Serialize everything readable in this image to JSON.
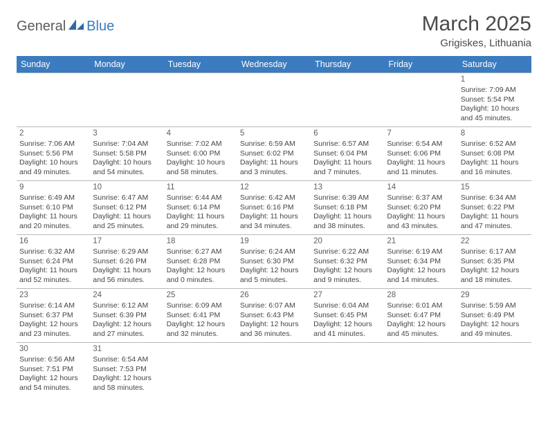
{
  "logo": {
    "part1": "General",
    "part2": "Blue"
  },
  "title": "March 2025",
  "location": "Grigiskes, Lithuania",
  "colors": {
    "header_bg": "#3b7bbf",
    "header_fg": "#ffffff",
    "border": "#b8b8b8",
    "text": "#454545",
    "logo_gray": "#5a5a5a",
    "logo_blue": "#3b7bbf"
  },
  "dayHeaders": [
    "Sunday",
    "Monday",
    "Tuesday",
    "Wednesday",
    "Thursday",
    "Friday",
    "Saturday"
  ],
  "weeks": [
    [
      null,
      null,
      null,
      null,
      null,
      null,
      {
        "n": "1",
        "sunrise": "Sunrise: 7:09 AM",
        "sunset": "Sunset: 5:54 PM",
        "daylight": "Daylight: 10 hours and 45 minutes."
      }
    ],
    [
      {
        "n": "2",
        "sunrise": "Sunrise: 7:06 AM",
        "sunset": "Sunset: 5:56 PM",
        "daylight": "Daylight: 10 hours and 49 minutes."
      },
      {
        "n": "3",
        "sunrise": "Sunrise: 7:04 AM",
        "sunset": "Sunset: 5:58 PM",
        "daylight": "Daylight: 10 hours and 54 minutes."
      },
      {
        "n": "4",
        "sunrise": "Sunrise: 7:02 AM",
        "sunset": "Sunset: 6:00 PM",
        "daylight": "Daylight: 10 hours and 58 minutes."
      },
      {
        "n": "5",
        "sunrise": "Sunrise: 6:59 AM",
        "sunset": "Sunset: 6:02 PM",
        "daylight": "Daylight: 11 hours and 3 minutes."
      },
      {
        "n": "6",
        "sunrise": "Sunrise: 6:57 AM",
        "sunset": "Sunset: 6:04 PM",
        "daylight": "Daylight: 11 hours and 7 minutes."
      },
      {
        "n": "7",
        "sunrise": "Sunrise: 6:54 AM",
        "sunset": "Sunset: 6:06 PM",
        "daylight": "Daylight: 11 hours and 11 minutes."
      },
      {
        "n": "8",
        "sunrise": "Sunrise: 6:52 AM",
        "sunset": "Sunset: 6:08 PM",
        "daylight": "Daylight: 11 hours and 16 minutes."
      }
    ],
    [
      {
        "n": "9",
        "sunrise": "Sunrise: 6:49 AM",
        "sunset": "Sunset: 6:10 PM",
        "daylight": "Daylight: 11 hours and 20 minutes."
      },
      {
        "n": "10",
        "sunrise": "Sunrise: 6:47 AM",
        "sunset": "Sunset: 6:12 PM",
        "daylight": "Daylight: 11 hours and 25 minutes."
      },
      {
        "n": "11",
        "sunrise": "Sunrise: 6:44 AM",
        "sunset": "Sunset: 6:14 PM",
        "daylight": "Daylight: 11 hours and 29 minutes."
      },
      {
        "n": "12",
        "sunrise": "Sunrise: 6:42 AM",
        "sunset": "Sunset: 6:16 PM",
        "daylight": "Daylight: 11 hours and 34 minutes."
      },
      {
        "n": "13",
        "sunrise": "Sunrise: 6:39 AM",
        "sunset": "Sunset: 6:18 PM",
        "daylight": "Daylight: 11 hours and 38 minutes."
      },
      {
        "n": "14",
        "sunrise": "Sunrise: 6:37 AM",
        "sunset": "Sunset: 6:20 PM",
        "daylight": "Daylight: 11 hours and 43 minutes."
      },
      {
        "n": "15",
        "sunrise": "Sunrise: 6:34 AM",
        "sunset": "Sunset: 6:22 PM",
        "daylight": "Daylight: 11 hours and 47 minutes."
      }
    ],
    [
      {
        "n": "16",
        "sunrise": "Sunrise: 6:32 AM",
        "sunset": "Sunset: 6:24 PM",
        "daylight": "Daylight: 11 hours and 52 minutes."
      },
      {
        "n": "17",
        "sunrise": "Sunrise: 6:29 AM",
        "sunset": "Sunset: 6:26 PM",
        "daylight": "Daylight: 11 hours and 56 minutes."
      },
      {
        "n": "18",
        "sunrise": "Sunrise: 6:27 AM",
        "sunset": "Sunset: 6:28 PM",
        "daylight": "Daylight: 12 hours and 0 minutes."
      },
      {
        "n": "19",
        "sunrise": "Sunrise: 6:24 AM",
        "sunset": "Sunset: 6:30 PM",
        "daylight": "Daylight: 12 hours and 5 minutes."
      },
      {
        "n": "20",
        "sunrise": "Sunrise: 6:22 AM",
        "sunset": "Sunset: 6:32 PM",
        "daylight": "Daylight: 12 hours and 9 minutes."
      },
      {
        "n": "21",
        "sunrise": "Sunrise: 6:19 AM",
        "sunset": "Sunset: 6:34 PM",
        "daylight": "Daylight: 12 hours and 14 minutes."
      },
      {
        "n": "22",
        "sunrise": "Sunrise: 6:17 AM",
        "sunset": "Sunset: 6:35 PM",
        "daylight": "Daylight: 12 hours and 18 minutes."
      }
    ],
    [
      {
        "n": "23",
        "sunrise": "Sunrise: 6:14 AM",
        "sunset": "Sunset: 6:37 PM",
        "daylight": "Daylight: 12 hours and 23 minutes."
      },
      {
        "n": "24",
        "sunrise": "Sunrise: 6:12 AM",
        "sunset": "Sunset: 6:39 PM",
        "daylight": "Daylight: 12 hours and 27 minutes."
      },
      {
        "n": "25",
        "sunrise": "Sunrise: 6:09 AM",
        "sunset": "Sunset: 6:41 PM",
        "daylight": "Daylight: 12 hours and 32 minutes."
      },
      {
        "n": "26",
        "sunrise": "Sunrise: 6:07 AM",
        "sunset": "Sunset: 6:43 PM",
        "daylight": "Daylight: 12 hours and 36 minutes."
      },
      {
        "n": "27",
        "sunrise": "Sunrise: 6:04 AM",
        "sunset": "Sunset: 6:45 PM",
        "daylight": "Daylight: 12 hours and 41 minutes."
      },
      {
        "n": "28",
        "sunrise": "Sunrise: 6:01 AM",
        "sunset": "Sunset: 6:47 PM",
        "daylight": "Daylight: 12 hours and 45 minutes."
      },
      {
        "n": "29",
        "sunrise": "Sunrise: 5:59 AM",
        "sunset": "Sunset: 6:49 PM",
        "daylight": "Daylight: 12 hours and 49 minutes."
      }
    ],
    [
      {
        "n": "30",
        "sunrise": "Sunrise: 6:56 AM",
        "sunset": "Sunset: 7:51 PM",
        "daylight": "Daylight: 12 hours and 54 minutes."
      },
      {
        "n": "31",
        "sunrise": "Sunrise: 6:54 AM",
        "sunset": "Sunset: 7:53 PM",
        "daylight": "Daylight: 12 hours and 58 minutes."
      },
      null,
      null,
      null,
      null,
      null
    ]
  ]
}
